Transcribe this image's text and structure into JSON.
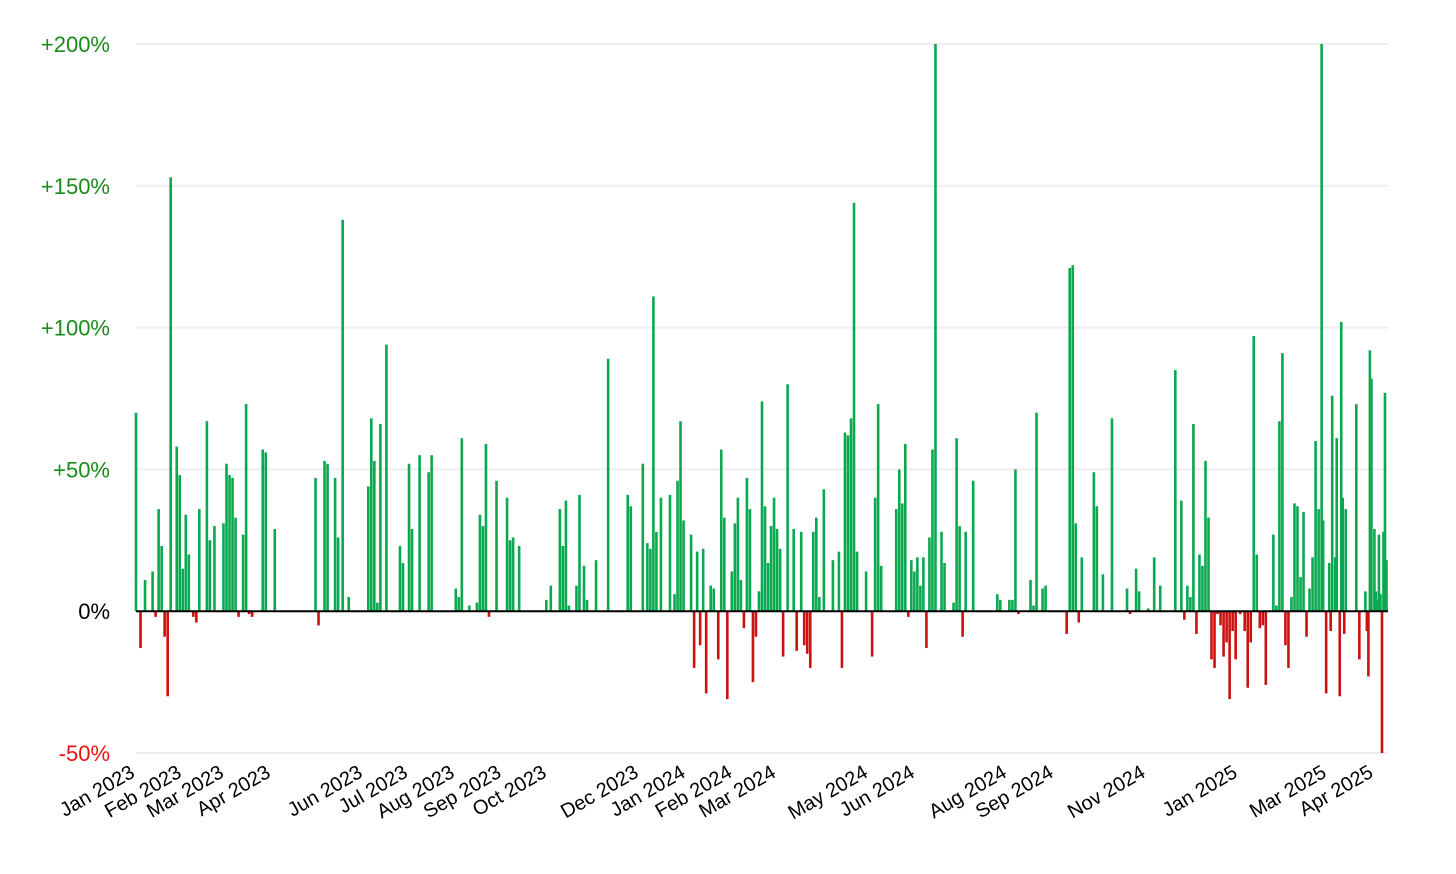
{
  "chart_data": {
    "type": "bar",
    "ylim": [
      -50,
      200
    ],
    "grid": true,
    "colors": {
      "positive": "#0aa84f",
      "negative": "#cc1111",
      "positive_label": "#1a8a1a",
      "negative_label": "#ee1111",
      "zero_label": "#000000",
      "grid": "#eeeeee"
    },
    "yticks": [
      {
        "value": 200,
        "label": "+200%"
      },
      {
        "value": 150,
        "label": "+150%"
      },
      {
        "value": 100,
        "label": "+100%"
      },
      {
        "value": 50,
        "label": "+50%"
      },
      {
        "value": 0,
        "label": "0%"
      },
      {
        "value": -50,
        "label": "-50%"
      }
    ],
    "x_start": "2023-01-01",
    "x_end": "2025-04-10",
    "xticks": [
      {
        "date": "2023-01-01",
        "label": "Jan 2023"
      },
      {
        "date": "2023-02-01",
        "label": "Feb 2023"
      },
      {
        "date": "2023-03-01",
        "label": "Mar 2023"
      },
      {
        "date": "2023-04-01",
        "label": "Apr 2023"
      },
      {
        "date": "2023-06-01",
        "label": "Jun 2023"
      },
      {
        "date": "2023-07-01",
        "label": "Jul 2023"
      },
      {
        "date": "2023-08-01",
        "label": "Aug 2023"
      },
      {
        "date": "2023-09-01",
        "label": "Sep 2023"
      },
      {
        "date": "2023-10-01",
        "label": "Oct 2023"
      },
      {
        "date": "2023-12-01",
        "label": "Dec 2023"
      },
      {
        "date": "2024-01-01",
        "label": "Jan 2024"
      },
      {
        "date": "2024-02-01",
        "label": "Feb 2024"
      },
      {
        "date": "2024-03-01",
        "label": "Mar 2024"
      },
      {
        "date": "2024-05-01",
        "label": "May 2024"
      },
      {
        "date": "2024-06-01",
        "label": "Jun 2024"
      },
      {
        "date": "2024-08-01",
        "label": "Aug 2024"
      },
      {
        "date": "2024-09-01",
        "label": "Sep 2024"
      },
      {
        "date": "2024-11-01",
        "label": "Nov 2024"
      },
      {
        "date": "2025-01-01",
        "label": "Jan 2025"
      },
      {
        "date": "2025-03-01",
        "label": "Mar 2025"
      },
      {
        "date": "2025-04-01",
        "label": "Apr 2025"
      }
    ],
    "points": [
      [
        "2023-01-01",
        70
      ],
      [
        "2023-01-04",
        -13
      ],
      [
        "2023-01-07",
        11
      ],
      [
        "2023-01-12",
        14
      ],
      [
        "2023-01-14",
        -2
      ],
      [
        "2023-01-16",
        36
      ],
      [
        "2023-01-18",
        23
      ],
      [
        "2023-01-20",
        -9
      ],
      [
        "2023-01-22",
        -30
      ],
      [
        "2023-01-24",
        153
      ],
      [
        "2023-01-28",
        58
      ],
      [
        "2023-01-30",
        48
      ],
      [
        "2023-02-01",
        15
      ],
      [
        "2023-02-03",
        34
      ],
      [
        "2023-02-05",
        20
      ],
      [
        "2023-02-08",
        -2
      ],
      [
        "2023-02-10",
        -4
      ],
      [
        "2023-02-12",
        36
      ],
      [
        "2023-02-17",
        67
      ],
      [
        "2023-02-19",
        25
      ],
      [
        "2023-02-22",
        30
      ],
      [
        "2023-02-28",
        31
      ],
      [
        "2023-03-02",
        52
      ],
      [
        "2023-03-04",
        48
      ],
      [
        "2023-03-06",
        47
      ],
      [
        "2023-03-08",
        33
      ],
      [
        "2023-03-10",
        -2
      ],
      [
        "2023-03-13",
        27
      ],
      [
        "2023-03-15",
        73
      ],
      [
        "2023-03-17",
        -1
      ],
      [
        "2023-03-19",
        -2
      ],
      [
        "2023-03-26",
        57
      ],
      [
        "2023-03-28",
        56
      ],
      [
        "2023-04-03",
        29
      ],
      [
        "2023-04-30",
        47
      ],
      [
        "2023-05-02",
        -5
      ],
      [
        "2023-05-06",
        53
      ],
      [
        "2023-05-08",
        52
      ],
      [
        "2023-05-13",
        47
      ],
      [
        "2023-05-15",
        26
      ],
      [
        "2023-05-18",
        138
      ],
      [
        "2023-05-22",
        5
      ],
      [
        "2023-06-04",
        44
      ],
      [
        "2023-06-06",
        68
      ],
      [
        "2023-06-08",
        53
      ],
      [
        "2023-06-10",
        3
      ],
      [
        "2023-06-12",
        66
      ],
      [
        "2023-06-16",
        94
      ],
      [
        "2023-06-25",
        23
      ],
      [
        "2023-06-27",
        17
      ],
      [
        "2023-07-01",
        52
      ],
      [
        "2023-07-03",
        29
      ],
      [
        "2023-07-08",
        55
      ],
      [
        "2023-07-14",
        49
      ],
      [
        "2023-07-16",
        55
      ],
      [
        "2023-08-01",
        8
      ],
      [
        "2023-08-03",
        5
      ],
      [
        "2023-08-05",
        61
      ],
      [
        "2023-08-10",
        2
      ],
      [
        "2023-08-15",
        3
      ],
      [
        "2023-08-17",
        34
      ],
      [
        "2023-08-19",
        30
      ],
      [
        "2023-08-21",
        59
      ],
      [
        "2023-08-23",
        -2
      ],
      [
        "2023-08-28",
        46
      ],
      [
        "2023-09-04",
        40
      ],
      [
        "2023-09-06",
        25
      ],
      [
        "2023-09-08",
        26
      ],
      [
        "2023-09-12",
        23
      ],
      [
        "2023-09-30",
        4
      ],
      [
        "2023-10-03",
        9
      ],
      [
        "2023-10-09",
        36
      ],
      [
        "2023-10-11",
        23
      ],
      [
        "2023-10-13",
        39
      ],
      [
        "2023-10-15",
        2
      ],
      [
        "2023-10-20",
        9
      ],
      [
        "2023-10-22",
        41
      ],
      [
        "2023-10-25",
        16
      ],
      [
        "2023-10-27",
        4
      ],
      [
        "2023-11-02",
        18
      ],
      [
        "2023-11-10",
        89
      ],
      [
        "2023-11-23",
        41
      ],
      [
        "2023-11-25",
        37
      ],
      [
        "2023-12-03",
        52
      ],
      [
        "2023-12-06",
        24
      ],
      [
        "2023-12-08",
        22
      ],
      [
        "2023-12-10",
        111
      ],
      [
        "2023-12-12",
        28
      ],
      [
        "2023-12-15",
        40
      ],
      [
        "2023-12-21",
        41
      ],
      [
        "2023-12-24",
        6
      ],
      [
        "2023-12-26",
        46
      ],
      [
        "2023-12-28",
        67
      ],
      [
        "2023-12-30",
        32
      ],
      [
        "2024-01-04",
        27
      ],
      [
        "2024-01-06",
        -20
      ],
      [
        "2024-01-08",
        21
      ],
      [
        "2024-01-10",
        -12
      ],
      [
        "2024-01-12",
        22
      ],
      [
        "2024-01-14",
        -29
      ],
      [
        "2024-01-17",
        9
      ],
      [
        "2024-01-19",
        8
      ],
      [
        "2024-01-22",
        -17
      ],
      [
        "2024-01-24",
        57
      ],
      [
        "2024-01-26",
        33
      ],
      [
        "2024-01-28",
        -31
      ],
      [
        "2024-01-31",
        14
      ],
      [
        "2024-02-02",
        31
      ],
      [
        "2024-02-04",
        40
      ],
      [
        "2024-02-06",
        11
      ],
      [
        "2024-02-08",
        -6
      ],
      [
        "2024-02-10",
        47
      ],
      [
        "2024-02-12",
        36
      ],
      [
        "2024-02-14",
        -25
      ],
      [
        "2024-02-16",
        -9
      ],
      [
        "2024-02-18",
        7
      ],
      [
        "2024-02-20",
        74
      ],
      [
        "2024-02-22",
        37
      ],
      [
        "2024-02-24",
        17
      ],
      [
        "2024-02-26",
        30
      ],
      [
        "2024-02-28",
        40
      ],
      [
        "2024-03-01",
        29
      ],
      [
        "2024-03-03",
        22
      ],
      [
        "2024-03-05",
        -16
      ],
      [
        "2024-03-08",
        80
      ],
      [
        "2024-03-12",
        29
      ],
      [
        "2024-03-14",
        -14
      ],
      [
        "2024-03-17",
        28
      ],
      [
        "2024-03-19",
        -12
      ],
      [
        "2024-03-21",
        -15
      ],
      [
        "2024-03-23",
        -20
      ],
      [
        "2024-03-25",
        28
      ],
      [
        "2024-03-27",
        33
      ],
      [
        "2024-03-29",
        5
      ],
      [
        "2024-04-01",
        43
      ],
      [
        "2024-04-07",
        18
      ],
      [
        "2024-04-11",
        21
      ],
      [
        "2024-04-13",
        -20
      ],
      [
        "2024-04-15",
        63
      ],
      [
        "2024-04-17",
        62
      ],
      [
        "2024-04-19",
        68
      ],
      [
        "2024-04-21",
        144
      ],
      [
        "2024-04-23",
        21
      ],
      [
        "2024-04-29",
        14
      ],
      [
        "2024-05-03",
        -16
      ],
      [
        "2024-05-05",
        40
      ],
      [
        "2024-05-07",
        73
      ],
      [
        "2024-05-09",
        16
      ],
      [
        "2024-05-19",
        36
      ],
      [
        "2024-05-21",
        50
      ],
      [
        "2024-05-23",
        38
      ],
      [
        "2024-05-25",
        59
      ],
      [
        "2024-05-27",
        -2
      ],
      [
        "2024-05-29",
        18
      ],
      [
        "2024-05-31",
        14
      ],
      [
        "2024-06-02",
        19
      ],
      [
        "2024-06-04",
        9
      ],
      [
        "2024-06-06",
        19
      ],
      [
        "2024-06-08",
        -13
      ],
      [
        "2024-06-10",
        26
      ],
      [
        "2024-06-12",
        57
      ],
      [
        "2024-06-14",
        200
      ],
      [
        "2024-06-18",
        28
      ],
      [
        "2024-06-20",
        17
      ],
      [
        "2024-06-26",
        3
      ],
      [
        "2024-06-28",
        61
      ],
      [
        "2024-06-30",
        30
      ],
      [
        "2024-07-02",
        -9
      ],
      [
        "2024-07-04",
        28
      ],
      [
        "2024-07-09",
        46
      ],
      [
        "2024-07-25",
        6
      ],
      [
        "2024-07-27",
        4
      ],
      [
        "2024-08-02",
        4
      ],
      [
        "2024-08-04",
        4
      ],
      [
        "2024-08-06",
        50
      ],
      [
        "2024-08-08",
        -1
      ],
      [
        "2024-08-16",
        11
      ],
      [
        "2024-08-18",
        2
      ],
      [
        "2024-08-20",
        70
      ],
      [
        "2024-08-24",
        8
      ],
      [
        "2024-08-26",
        9
      ],
      [
        "2024-09-09",
        -8
      ],
      [
        "2024-09-11",
        121
      ],
      [
        "2024-09-13",
        122
      ],
      [
        "2024-09-15",
        31
      ],
      [
        "2024-09-17",
        -4
      ],
      [
        "2024-09-19",
        19
      ],
      [
        "2024-09-27",
        49
      ],
      [
        "2024-09-29",
        37
      ],
      [
        "2024-10-03",
        13
      ],
      [
        "2024-10-09",
        68
      ],
      [
        "2024-10-19",
        8
      ],
      [
        "2024-10-21",
        -1
      ],
      [
        "2024-10-25",
        15
      ],
      [
        "2024-10-27",
        7
      ],
      [
        "2024-11-02",
        1
      ],
      [
        "2024-11-06",
        19
      ],
      [
        "2024-11-10",
        9
      ],
      [
        "2024-11-20",
        85
      ],
      [
        "2024-11-24",
        39
      ],
      [
        "2024-11-26",
        -3
      ],
      [
        "2024-11-28",
        9
      ],
      [
        "2024-11-30",
        5
      ],
      [
        "2024-12-02",
        66
      ],
      [
        "2024-12-04",
        -8
      ],
      [
        "2024-12-06",
        20
      ],
      [
        "2024-12-08",
        16
      ],
      [
        "2024-12-10",
        53
      ],
      [
        "2024-12-12",
        33
      ],
      [
        "2024-12-14",
        -17
      ],
      [
        "2024-12-16",
        -20
      ],
      [
        "2024-12-18",
        -1
      ],
      [
        "2024-12-20",
        -5
      ],
      [
        "2024-12-22",
        -16
      ],
      [
        "2024-12-24",
        -11
      ],
      [
        "2024-12-26",
        -31
      ],
      [
        "2024-12-28",
        -7
      ],
      [
        "2024-12-30",
        -17
      ],
      [
        "2025-01-02",
        -1
      ],
      [
        "2025-01-05",
        -7
      ],
      [
        "2025-01-07",
        -27
      ],
      [
        "2025-01-09",
        -11
      ],
      [
        "2025-01-11",
        97
      ],
      [
        "2025-01-13",
        20
      ],
      [
        "2025-01-15",
        -6
      ],
      [
        "2025-01-17",
        -5
      ],
      [
        "2025-01-19",
        -26
      ],
      [
        "2025-01-24",
        27
      ],
      [
        "2025-01-26",
        2
      ],
      [
        "2025-01-28",
        67
      ],
      [
        "2025-01-30",
        91
      ],
      [
        "2025-02-01",
        -12
      ],
      [
        "2025-02-03",
        -20
      ],
      [
        "2025-02-05",
        5
      ],
      [
        "2025-02-07",
        38
      ],
      [
        "2025-02-09",
        37
      ],
      [
        "2025-02-11",
        12
      ],
      [
        "2025-02-13",
        35
      ],
      [
        "2025-02-15",
        -9
      ],
      [
        "2025-02-17",
        8
      ],
      [
        "2025-02-19",
        19
      ],
      [
        "2025-02-21",
        60
      ],
      [
        "2025-02-23",
        36
      ],
      [
        "2025-02-25",
        200
      ],
      [
        "2025-02-26",
        32
      ],
      [
        "2025-02-28",
        -29
      ],
      [
        "2025-03-02",
        17
      ],
      [
        "2025-03-03",
        -7
      ],
      [
        "2025-03-04",
        76
      ],
      [
        "2025-03-06",
        19
      ],
      [
        "2025-03-07",
        61
      ],
      [
        "2025-03-09",
        -30
      ],
      [
        "2025-03-10",
        102
      ],
      [
        "2025-03-11",
        40
      ],
      [
        "2025-03-12",
        -8
      ],
      [
        "2025-03-13",
        36
      ],
      [
        "2025-03-20",
        73
      ],
      [
        "2025-03-22",
        -17
      ],
      [
        "2025-03-26",
        7
      ],
      [
        "2025-03-27",
        -7
      ],
      [
        "2025-03-28",
        -23
      ],
      [
        "2025-03-29",
        92
      ],
      [
        "2025-03-30",
        82
      ],
      [
        "2025-04-01",
        29
      ],
      [
        "2025-04-02",
        7
      ],
      [
        "2025-04-03",
        4
      ],
      [
        "2025-04-04",
        27
      ],
      [
        "2025-04-05",
        6
      ],
      [
        "2025-04-06",
        -51
      ],
      [
        "2025-04-07",
        28
      ],
      [
        "2025-04-08",
        77
      ],
      [
        "2025-04-09",
        18
      ]
    ]
  }
}
